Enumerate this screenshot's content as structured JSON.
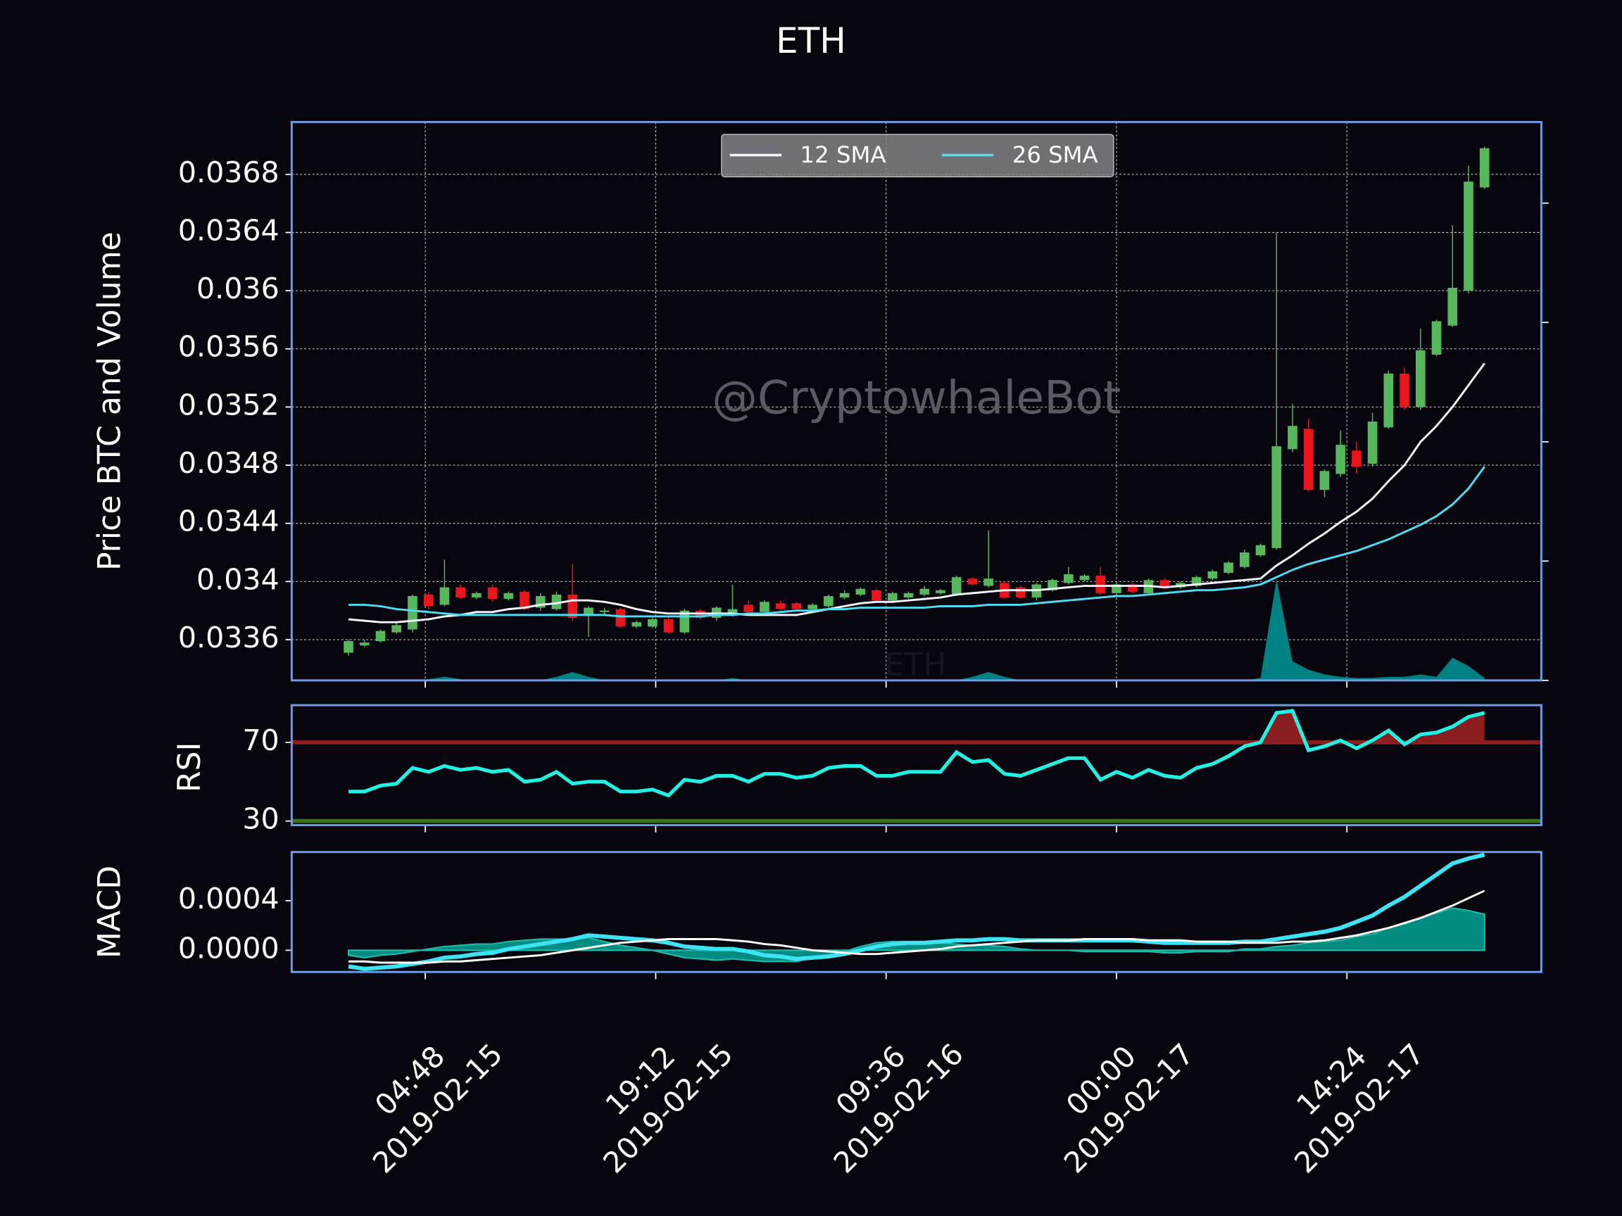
{
  "chart_data": [
    {
      "type": "candlestick",
      "title": "ETH",
      "watermark": "@CryptowhaleBot",
      "ylabel": "Price BTC and Volume",
      "x": [
        "2019-02-15 00:00",
        "2019-02-15 01:00",
        "2019-02-15 02:00",
        "2019-02-15 03:00",
        "2019-02-15 04:00",
        "2019-02-15 05:00",
        "2019-02-15 06:00",
        "2019-02-15 07:00",
        "2019-02-15 08:00",
        "2019-02-15 09:00",
        "2019-02-15 10:00",
        "2019-02-15 11:00",
        "2019-02-15 12:00",
        "2019-02-15 13:00",
        "2019-02-15 14:00",
        "2019-02-15 15:00",
        "2019-02-15 16:00",
        "2019-02-15 17:00",
        "2019-02-15 18:00",
        "2019-02-15 19:00",
        "2019-02-15 20:00",
        "2019-02-15 21:00",
        "2019-02-15 22:00",
        "2019-02-15 23:00",
        "2019-02-16 00:00",
        "2019-02-16 01:00",
        "2019-02-16 02:00",
        "2019-02-16 03:00",
        "2019-02-16 04:00",
        "2019-02-16 05:00",
        "2019-02-16 06:00",
        "2019-02-16 07:00",
        "2019-02-16 08:00",
        "2019-02-16 09:00",
        "2019-02-16 10:00",
        "2019-02-16 11:00",
        "2019-02-16 12:00",
        "2019-02-16 13:00",
        "2019-02-16 14:00",
        "2019-02-16 15:00",
        "2019-02-16 16:00",
        "2019-02-16 17:00",
        "2019-02-16 18:00",
        "2019-02-16 19:00",
        "2019-02-16 20:00",
        "2019-02-16 21:00",
        "2019-02-16 22:00",
        "2019-02-16 23:00",
        "2019-02-17 00:00",
        "2019-02-17 01:00",
        "2019-02-17 02:00",
        "2019-02-17 03:00",
        "2019-02-17 04:00",
        "2019-02-17 05:00",
        "2019-02-17 06:00",
        "2019-02-17 07:00",
        "2019-02-17 08:00",
        "2019-02-17 09:00",
        "2019-02-17 10:00",
        "2019-02-17 11:00",
        "2019-02-17 12:00",
        "2019-02-17 13:00",
        "2019-02-17 14:00",
        "2019-02-17 15:00",
        "2019-02-17 16:00",
        "2019-02-17 17:00",
        "2019-02-17 18:00",
        "2019-02-17 19:00",
        "2019-02-17 20:00",
        "2019-02-17 21:00",
        "2019-02-17 22:00",
        "2019-02-17 23:00"
      ],
      "open": [
        0.03351,
        0.03356,
        0.03359,
        0.03365,
        0.03367,
        0.03391,
        0.03384,
        0.03396,
        0.03389,
        0.03396,
        0.03388,
        0.03393,
        0.03382,
        0.03381,
        0.03391,
        0.03377,
        0.03379,
        0.03381,
        0.03369,
        0.03369,
        0.03374,
        0.03365,
        0.0338,
        0.03375,
        0.03378,
        0.03384,
        0.03379,
        0.03385,
        0.03385,
        0.03381,
        0.03383,
        0.03389,
        0.03391,
        0.03394,
        0.03387,
        0.03389,
        0.03391,
        0.03392,
        0.03391,
        0.03402,
        0.03397,
        0.03399,
        0.03396,
        0.03389,
        0.03394,
        0.03399,
        0.03401,
        0.03404,
        0.03392,
        0.03398,
        0.03392,
        0.03401,
        0.03396,
        0.03397,
        0.03402,
        0.03406,
        0.0341,
        0.03418,
        0.03423,
        0.03491,
        0.03505,
        0.03463,
        0.03474,
        0.0349,
        0.03481,
        0.03506,
        0.03543,
        0.0352,
        0.03556,
        0.03576,
        0.036,
        0.03671
      ],
      "high": [
        0.0336,
        0.0336,
        0.03367,
        0.03372,
        0.03391,
        0.03393,
        0.03415,
        0.03398,
        0.03393,
        0.03398,
        0.03393,
        0.03394,
        0.03392,
        0.03393,
        0.03412,
        0.03383,
        0.03382,
        0.03382,
        0.03373,
        0.03375,
        0.03376,
        0.03381,
        0.03381,
        0.03383,
        0.03398,
        0.03387,
        0.03387,
        0.03387,
        0.03386,
        0.03385,
        0.03391,
        0.03394,
        0.03396,
        0.03395,
        0.03393,
        0.03393,
        0.03397,
        0.03395,
        0.03404,
        0.03403,
        0.03435,
        0.034,
        0.03397,
        0.03399,
        0.03402,
        0.0341,
        0.03405,
        0.0341,
        0.03399,
        0.03399,
        0.03402,
        0.03402,
        0.034,
        0.03404,
        0.03408,
        0.03414,
        0.03422,
        0.03426,
        0.0364,
        0.03522,
        0.03512,
        0.03477,
        0.03504,
        0.03496,
        0.03516,
        0.03545,
        0.03547,
        0.03574,
        0.0358,
        0.03645,
        0.03686,
        0.03699
      ],
      "low": [
        0.03349,
        0.03355,
        0.03358,
        0.03364,
        0.03365,
        0.03381,
        0.03383,
        0.03388,
        0.03388,
        0.03386,
        0.03387,
        0.0338,
        0.0338,
        0.0338,
        0.03373,
        0.03362,
        0.03377,
        0.03368,
        0.03368,
        0.03368,
        0.03364,
        0.03364,
        0.03374,
        0.03373,
        0.03376,
        0.03378,
        0.03378,
        0.0338,
        0.0338,
        0.0338,
        0.03382,
        0.03388,
        0.0339,
        0.03386,
        0.03386,
        0.03388,
        0.0339,
        0.03391,
        0.0339,
        0.03397,
        0.03396,
        0.03388,
        0.03388,
        0.03387,
        0.03393,
        0.03398,
        0.034,
        0.03391,
        0.03391,
        0.03392,
        0.03391,
        0.03395,
        0.03395,
        0.03396,
        0.03401,
        0.03405,
        0.03409,
        0.03417,
        0.03422,
        0.03489,
        0.03462,
        0.03458,
        0.03472,
        0.03474,
        0.03479,
        0.03505,
        0.03518,
        0.03518,
        0.03555,
        0.03575,
        0.03598,
        0.0367
      ],
      "close": [
        0.03359,
        0.03358,
        0.03366,
        0.0337,
        0.0339,
        0.03383,
        0.03396,
        0.03389,
        0.03392,
        0.03388,
        0.03392,
        0.03381,
        0.0339,
        0.03391,
        0.03375,
        0.03382,
        0.0338,
        0.03369,
        0.03372,
        0.03374,
        0.03365,
        0.0338,
        0.03375,
        0.03382,
        0.03381,
        0.03379,
        0.03386,
        0.03381,
        0.03381,
        0.03384,
        0.0339,
        0.03392,
        0.03395,
        0.03387,
        0.03392,
        0.03392,
        0.03395,
        0.03394,
        0.03403,
        0.03398,
        0.03402,
        0.03389,
        0.03389,
        0.03398,
        0.03401,
        0.03405,
        0.03404,
        0.03392,
        0.03398,
        0.03393,
        0.03401,
        0.03396,
        0.03399,
        0.03403,
        0.03407,
        0.03413,
        0.0342,
        0.03425,
        0.03493,
        0.03507,
        0.03463,
        0.03476,
        0.03494,
        0.03479,
        0.0351,
        0.03543,
        0.0352,
        0.03559,
        0.03579,
        0.03602,
        0.03675,
        0.03698
      ],
      "up_color": "#56b85a",
      "down_color": "#e8161b",
      "series": [
        {
          "name": "12 SMA",
          "color": "#f4f4ff",
          "values": [
            0.03374,
            0.03373,
            0.03372,
            0.03372,
            0.03373,
            0.03374,
            0.03376,
            0.03377,
            0.03379,
            0.03379,
            0.03381,
            0.03382,
            0.03384,
            0.03385,
            0.03387,
            0.03387,
            0.03386,
            0.03384,
            0.03381,
            0.03379,
            0.03378,
            0.03378,
            0.03378,
            0.03378,
            0.03378,
            0.03377,
            0.03377,
            0.03377,
            0.03377,
            0.03379,
            0.03381,
            0.03383,
            0.03385,
            0.03386,
            0.03386,
            0.03387,
            0.03388,
            0.03389,
            0.03391,
            0.03392,
            0.03393,
            0.03394,
            0.03394,
            0.03394,
            0.03395,
            0.03396,
            0.03397,
            0.03397,
            0.03397,
            0.03397,
            0.03397,
            0.03396,
            0.03397,
            0.03398,
            0.03399,
            0.034,
            0.03401,
            0.03402,
            0.03411,
            0.03418,
            0.03426,
            0.03433,
            0.03441,
            0.03448,
            0.03457,
            0.03469,
            0.0348,
            0.03496,
            0.03507,
            0.0352,
            0.03535,
            0.0355
          ]
        },
        {
          "name": "26 SMA",
          "color": "#4fdcf2",
          "values": [
            0.03384,
            0.03384,
            0.03383,
            0.03381,
            0.0338,
            0.03379,
            0.03378,
            0.03377,
            0.03377,
            0.03377,
            0.03377,
            0.03377,
            0.03377,
            0.03377,
            0.03377,
            0.03377,
            0.03377,
            0.03376,
            0.03376,
            0.03376,
            0.03376,
            0.03376,
            0.03376,
            0.03377,
            0.03377,
            0.03378,
            0.03378,
            0.03379,
            0.0338,
            0.0338,
            0.03381,
            0.03381,
            0.03382,
            0.03382,
            0.03382,
            0.03382,
            0.03382,
            0.03383,
            0.03383,
            0.03383,
            0.03384,
            0.03384,
            0.03384,
            0.03385,
            0.03386,
            0.03387,
            0.03388,
            0.03389,
            0.0339,
            0.0339,
            0.03391,
            0.03392,
            0.03393,
            0.03394,
            0.03394,
            0.03395,
            0.03396,
            0.03398,
            0.03403,
            0.03408,
            0.03412,
            0.03415,
            0.03418,
            0.03421,
            0.03425,
            0.03429,
            0.03434,
            0.03439,
            0.03445,
            0.03453,
            0.03464,
            0.03479
          ]
        }
      ],
      "volume": {
        "name": "ETH",
        "color": "#008080",
        "axis": "y2",
        "values": [
          0,
          0,
          0,
          0,
          0,
          0.01,
          0.03,
          0.01,
          0,
          0,
          0,
          0,
          0,
          0.03,
          0.07,
          0.03,
          0,
          0,
          0,
          0,
          0,
          0,
          0,
          0,
          0.02,
          0,
          0,
          0,
          0,
          0,
          0,
          0,
          0,
          0,
          0,
          0,
          0,
          0,
          0,
          0.03,
          0.07,
          0.03,
          0,
          0,
          0,
          0,
          0,
          0,
          0,
          0,
          0,
          0,
          0,
          0,
          0,
          0,
          0,
          0.02,
          0.85,
          0.16,
          0.09,
          0.05,
          0.03,
          0.02,
          0.02,
          0.03,
          0.03,
          0.05,
          0.03,
          0.19,
          0.12,
          0.02
        ]
      },
      "xlim": [
        "2019-02-14 20:27",
        "2019-02-18 02:33"
      ],
      "xticks": [
        {
          "value": "2019-02-15 04:48",
          "label": [
            "04:48",
            "2019-02-15"
          ]
        },
        {
          "value": "2019-02-15 19:12",
          "label": [
            "19:12",
            "2019-02-15"
          ]
        },
        {
          "value": "2019-02-16 09:36",
          "label": [
            "09:36",
            "2019-02-16"
          ]
        },
        {
          "value": "2019-02-17 00:00",
          "label": [
            "00:00",
            "2019-02-17"
          ]
        },
        {
          "value": "2019-02-17 14:24",
          "label": [
            "14:24",
            "2019-02-17"
          ]
        }
      ],
      "ylim": [
        0.03332,
        0.03716
      ],
      "yticks": [
        0.0336,
        0.034,
        0.0344,
        0.0348,
        0.0352,
        0.0356,
        0.036,
        0.0364,
        0.0368
      ],
      "y2lim": [
        0,
        4.68
      ],
      "y2ticks": [
        0,
        1,
        2,
        3,
        4
      ],
      "grid": true,
      "legend": "upper center"
    },
    {
      "type": "line",
      "ylabel": "RSI",
      "color": "#22f0e2",
      "values": [
        45,
        45,
        48,
        49,
        57,
        55,
        58,
        56,
        57,
        55,
        56,
        50,
        51,
        55,
        49,
        50,
        50,
        45,
        45,
        46,
        43,
        51,
        50,
        53,
        53,
        50,
        54,
        54,
        52,
        53,
        57,
        58,
        58,
        53,
        53,
        55,
        55,
        55,
        65,
        60,
        61,
        54,
        53,
        56,
        59,
        62,
        62,
        51,
        55,
        52,
        56,
        53,
        52,
        57,
        59,
        63,
        68,
        70,
        85,
        86,
        66,
        68,
        71,
        67,
        71,
        76,
        69,
        74,
        75,
        78,
        83,
        85
      ],
      "thresholds": [
        {
          "value": 70,
          "color": "#8b1f1f",
          "fill": "above"
        },
        {
          "value": 30,
          "color": "#3a6e1c"
        }
      ],
      "ylim": [
        27.9,
        88.9
      ],
      "yticks": [
        30,
        70
      ]
    },
    {
      "type": "line",
      "ylabel": "MACD",
      "series": [
        {
          "color": "#3de3f2",
          "width": 4,
          "values": [
            -0.00013,
            -0.00015,
            -0.00014,
            -0.00013,
            -0.00011,
            -9e-05,
            -6e-05,
            -5e-05,
            -3e-05,
            -2e-05,
            1e-05,
            3e-05,
            5e-05,
            7e-05,
            9e-05,
            0.00012,
            0.00011,
            0.0001,
            9e-05,
            8e-05,
            6e-05,
            3e-05,
            2e-05,
            1e-05,
            1e-05,
            -1e-05,
            -4e-05,
            -5e-05,
            -7e-05,
            -6e-05,
            -5e-05,
            -3e-05,
            0,
            3e-05,
            5e-05,
            6e-05,
            6e-05,
            7e-05,
            8e-05,
            8e-05,
            9e-05,
            9e-05,
            8e-05,
            8e-05,
            8e-05,
            8e-05,
            8e-05,
            8e-05,
            8e-05,
            8e-05,
            7e-05,
            6e-05,
            6e-05,
            6e-05,
            6e-05,
            6e-05,
            7e-05,
            7e-05,
            9e-05,
            0.00011,
            0.00013,
            0.00015,
            0.00018,
            0.00023,
            0.00028,
            0.00036,
            0.00043,
            0.00052,
            0.00061,
            0.0007,
            0.00074,
            0.00077
          ]
        },
        {
          "color": "#ffffff",
          "width": 2,
          "values": [
            -9e-05,
            -9e-05,
            -0.0001,
            -0.0001,
            -0.0001,
            -0.0001,
            -9e-05,
            -9e-05,
            -8e-05,
            -7e-05,
            -6e-05,
            -5e-05,
            -4e-05,
            -2e-05,
            0,
            2e-05,
            4e-05,
            6e-05,
            7e-05,
            8e-05,
            9e-05,
            9e-05,
            9e-05,
            9e-05,
            8e-05,
            7e-05,
            5e-05,
            4e-05,
            2e-05,
            0,
            -1e-05,
            -2e-05,
            -3e-05,
            -3e-05,
            -2e-05,
            -1e-05,
            0,
            1e-05,
            3e-05,
            4e-05,
            5e-05,
            6e-05,
            7e-05,
            8e-05,
            8e-05,
            8e-05,
            9e-05,
            9e-05,
            9e-05,
            9e-05,
            8e-05,
            8e-05,
            8e-05,
            7e-05,
            7e-05,
            7e-05,
            6e-05,
            6e-05,
            6e-05,
            7e-05,
            7e-05,
            8e-05,
            0.0001,
            0.00012,
            0.00015,
            0.00018,
            0.00022,
            0.00026,
            0.00031,
            0.00036,
            0.00042,
            0.00048
          ]
        }
      ],
      "hist": {
        "color": "#008c80",
        "values": [
          -4e-05,
          -6e-05,
          -4e-05,
          -3e-05,
          -1e-05,
          1e-05,
          3e-05,
          4e-05,
          5e-05,
          5e-05,
          7e-05,
          8e-05,
          9e-05,
          9e-05,
          9e-05,
          0.0001,
          7e-05,
          4e-05,
          2e-05,
          0,
          -3e-05,
          -6e-05,
          -7e-05,
          -8e-05,
          -7e-05,
          -8e-05,
          -9e-05,
          -9e-05,
          -9e-05,
          -6e-05,
          -4e-05,
          -1e-05,
          3e-05,
          6e-05,
          7e-05,
          7e-05,
          6e-05,
          6e-05,
          5e-05,
          4e-05,
          4e-05,
          3e-05,
          1e-05,
          0,
          0,
          0,
          -1e-05,
          -1e-05,
          -1e-05,
          -1e-05,
          -1e-05,
          -2e-05,
          -2e-05,
          -1e-05,
          -1e-05,
          -1e-05,
          1e-05,
          1e-05,
          3e-05,
          4e-05,
          6e-05,
          7e-05,
          8e-05,
          0.00011,
          0.00013,
          0.00018,
          0.00021,
          0.00026,
          0.0003,
          0.00034,
          0.00032,
          0.00029
        ]
      },
      "ylim": [
        -0.000175,
        0.000792
      ],
      "yticks": [
        {
          "value": 0,
          "label": "0.0000"
        },
        {
          "value": 0.0004,
          "label": "0.0004"
        }
      ]
    }
  ]
}
